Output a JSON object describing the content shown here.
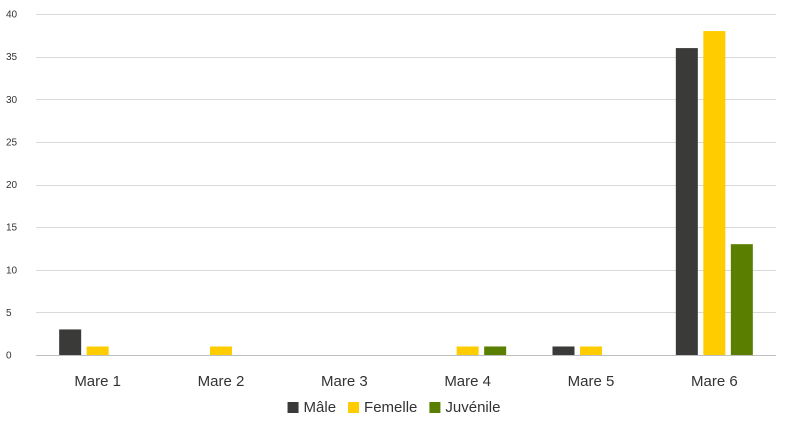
{
  "chart_data": {
    "type": "bar",
    "title": "",
    "xlabel": "",
    "ylabel": "",
    "categories": [
      "Mare 1",
      "Mare 2",
      "Mare 3",
      "Mare 4",
      "Mare 5",
      "Mare 6"
    ],
    "series": [
      {
        "name": "Mâle",
        "color": "#3a3a38",
        "values": [
          3,
          0,
          0,
          0,
          1,
          36
        ]
      },
      {
        "name": "Femelle",
        "color": "#ffcc00",
        "values": [
          1,
          1,
          0,
          1,
          1,
          38
        ]
      },
      {
        "name": "Juvénile",
        "color": "#5a7f00",
        "values": [
          0,
          0,
          0,
          1,
          0,
          13
        ]
      }
    ],
    "ylim": [
      0,
      40
    ],
    "yticks": [
      0,
      5,
      10,
      15,
      20,
      25,
      30,
      35,
      40
    ],
    "grid": true,
    "legend_position": "bottom"
  }
}
